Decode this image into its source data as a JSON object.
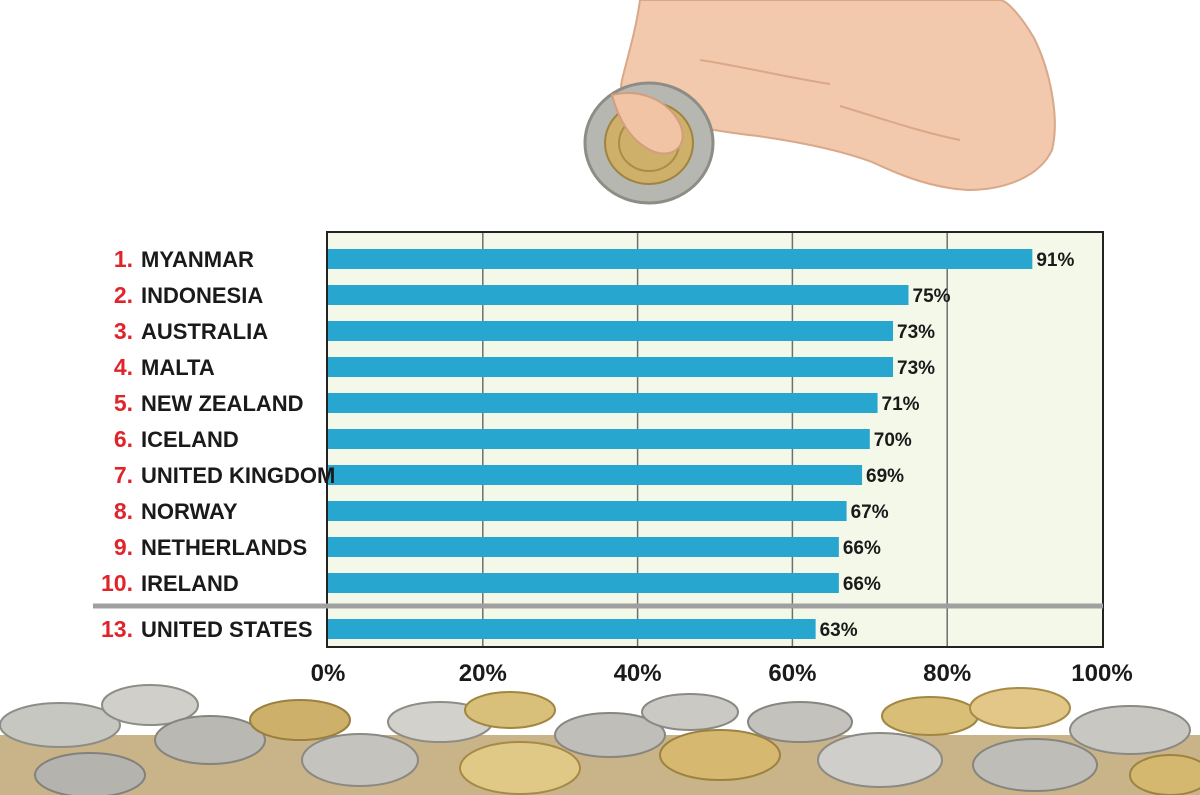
{
  "chart_data": {
    "type": "bar",
    "orientation": "horizontal",
    "ranks": [
      "1.",
      "2.",
      "3.",
      "4.",
      "5.",
      "6.",
      "7.",
      "8.",
      "9.",
      "10.",
      "13."
    ],
    "categories": [
      "MYANMAR",
      "INDONESIA",
      "AUSTRALIA",
      "MALTA",
      "NEW ZEALAND",
      "ICELAND",
      "UNITED KINGDOM",
      "NORWAY",
      "NETHERLANDS",
      "IRELAND",
      "UNITED STATES"
    ],
    "values": [
      91,
      75,
      73,
      73,
      71,
      70,
      69,
      67,
      66,
      66,
      63
    ],
    "value_labels": [
      "91%",
      "75%",
      "73%",
      "73%",
      "71%",
      "70%",
      "69%",
      "67%",
      "66%",
      "66%",
      "63%"
    ],
    "xlim": [
      0,
      100
    ],
    "xticks": [
      "0%",
      "20%",
      "40%",
      "60%",
      "80%",
      "100%"
    ],
    "grid": true,
    "separator_before_index": 10,
    "colors": {
      "bar": "#27a6cf",
      "plot_background": "#f4f8e9",
      "rank_text": "#e0242c",
      "gridline": "#6e6e6e",
      "separator": "#a0a0a0"
    }
  },
  "illustration": {
    "hand_icon": "hand-holding-coin-icon",
    "coins_icon": "coin-pile-icon"
  }
}
